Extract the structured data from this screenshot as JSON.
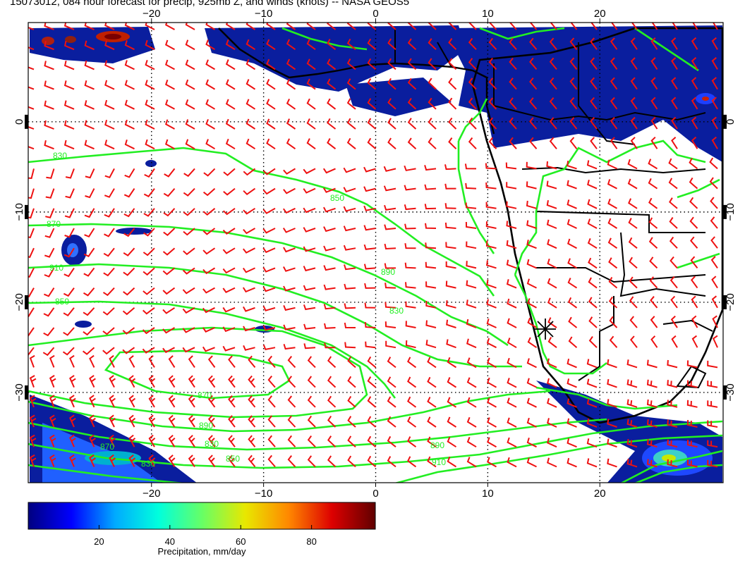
{
  "title": "15073012, 084 hour forecast for precip, 925mb Z, and winds (knots) -- NASA GEOS5",
  "map": {
    "lon_range": [
      -31,
      31
    ],
    "lat_range": [
      -40,
      11
    ],
    "x_ticks_bottom": [
      {
        "value": -20,
        "label": "−20"
      },
      {
        "value": -10,
        "label": "−10"
      },
      {
        "value": 0,
        "label": "0"
      },
      {
        "value": 10,
        "label": "10"
      },
      {
        "value": 20,
        "label": "20"
      }
    ],
    "x_ticks_top": [
      {
        "value": -20,
        "label": "−20"
      },
      {
        "value": -10,
        "label": "−10"
      },
      {
        "value": 0,
        "label": "0"
      },
      {
        "value": 10,
        "label": "10"
      },
      {
        "value": 20,
        "label": "20"
      }
    ],
    "y_ticks": [
      {
        "value": 0,
        "label": "0"
      },
      {
        "value": -10,
        "label": "−10"
      },
      {
        "value": -20,
        "label": "−20"
      },
      {
        "value": -30,
        "label": "−30"
      }
    ],
    "contour_labels": [
      "830",
      "850",
      "870",
      "890",
      "910",
      "830",
      "850",
      "870",
      "890",
      "830",
      "850",
      "870",
      "890",
      "910",
      "830"
    ],
    "colors": {
      "contour": "#22ee22",
      "wind": "#ee1111",
      "coast": "#000000",
      "grid": "#000000"
    }
  },
  "colorbar": {
    "ticks": [
      "20",
      "40",
      "60",
      "80"
    ],
    "tick_values": [
      20,
      40,
      60,
      80
    ],
    "range": [
      0,
      98
    ],
    "label": "Precipitation, mm/day",
    "colors": [
      "#000080",
      "#0000ff",
      "#00aaff",
      "#00ffdd",
      "#66ff66",
      "#e8e800",
      "#ff8800",
      "#dd0000",
      "#600000"
    ]
  }
}
